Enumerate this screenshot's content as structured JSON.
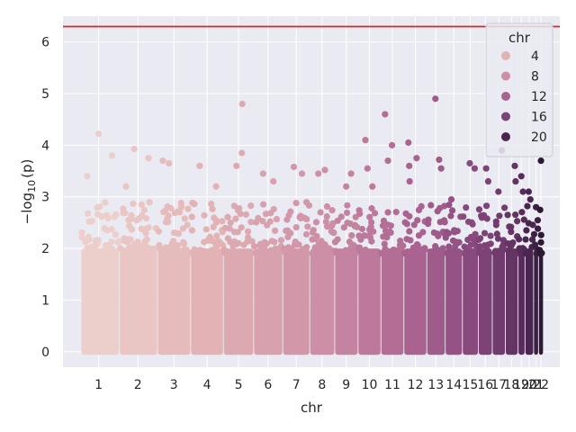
{
  "chart_data": {
    "type": "scatter",
    "title": "",
    "xlabel": "chr",
    "ylabel": "−log",
    "ylabel_sub": "10",
    "ylabel_tail": "(p)",
    "ylim": [
      -0.3,
      6.5
    ],
    "yticks": [
      0,
      1,
      2,
      3,
      4,
      5,
      6
    ],
    "grid": true,
    "background": "#eaeaf2",
    "threshold": {
      "y": 6.3,
      "color": "#d62728"
    },
    "chromosomes": [
      {
        "chr": "1",
        "span": [
          1,
          93
        ],
        "tick_at": 43,
        "max": 4.22,
        "peaks": [
          [
            43,
            4.22
          ],
          [
            76,
            3.8
          ],
          [
            15,
            3.4
          ]
        ]
      },
      {
        "chr": "2",
        "span": [
          95,
          186
        ],
        "tick_at": 139,
        "max": 3.93,
        "peaks": [
          [
            130,
            3.93
          ],
          [
            165,
            3.75
          ],
          [
            110,
            3.2
          ]
        ]
      },
      {
        "chr": "3",
        "span": [
          188,
          267
        ],
        "tick_at": 227,
        "max": 3.7,
        "peaks": [
          [
            200,
            3.7
          ],
          [
            215,
            3.65
          ]
        ]
      },
      {
        "chr": "4",
        "span": [
          269,
          347
        ],
        "tick_at": 308,
        "max": 3.6,
        "peaks": [
          [
            290,
            3.6
          ],
          [
            330,
            3.2
          ]
        ]
      },
      {
        "chr": "5",
        "span": [
          349,
          421
        ],
        "tick_at": 385,
        "max": 4.8,
        "peaks": [
          [
            394,
            4.8
          ],
          [
            393,
            3.85
          ],
          [
            380,
            3.6
          ]
        ]
      },
      {
        "chr": "6",
        "span": [
          423,
          492
        ],
        "tick_at": 457,
        "max": 3.45,
        "peaks": [
          [
            445,
            3.45
          ],
          [
            470,
            3.3
          ]
        ]
      },
      {
        "chr": "7",
        "span": [
          494,
          558
        ],
        "tick_at": 526,
        "max": 3.58,
        "peaks": [
          [
            520,
            3.58
          ],
          [
            540,
            3.45
          ]
        ]
      },
      {
        "chr": "8",
        "span": [
          560,
          619
        ],
        "tick_at": 589,
        "max": 3.52,
        "peaks": [
          [
            596,
            3.52
          ],
          [
            580,
            3.45
          ]
        ]
      },
      {
        "chr": "9",
        "span": [
          621,
          676
        ],
        "tick_at": 648,
        "max": 3.45,
        "peaks": [
          [
            660,
            3.45
          ],
          [
            648,
            3.2
          ]
        ]
      },
      {
        "chr": "10",
        "span": [
          678,
          732
        ],
        "tick_at": 705,
        "max": 4.1,
        "peaks": [
          [
            695,
            4.1
          ],
          [
            700,
            3.55
          ],
          [
            712,
            3.2
          ]
        ]
      },
      {
        "chr": "11",
        "span": [
          734,
          788
        ],
        "tick_at": 761,
        "max": 4.6,
        "peaks": [
          [
            743,
            4.6
          ],
          [
            760,
            4.0
          ],
          [
            750,
            3.7
          ]
        ]
      },
      {
        "chr": "12",
        "span": [
          790,
          844
        ],
        "tick_at": 817,
        "max": 4.05,
        "peaks": [
          [
            800,
            4.05
          ],
          [
            802,
            3.6
          ],
          [
            803,
            3.3
          ],
          [
            820,
            3.75
          ]
        ]
      },
      {
        "chr": "13",
        "span": [
          846,
          889
        ],
        "tick_at": 867,
        "max": 4.9,
        "peaks": [
          [
            866,
            4.9
          ],
          [
            875,
            3.72
          ],
          [
            880,
            3.55
          ]
        ]
      },
      {
        "chr": "14",
        "span": [
          891,
          931
        ],
        "tick_at": 911,
        "max": 2.95,
        "peaks": [
          [
            905,
            2.95
          ]
        ]
      },
      {
        "chr": "15",
        "span": [
          933,
          970
        ],
        "tick_at": 951,
        "max": 3.65,
        "peaks": [
          [
            950,
            3.65
          ],
          [
            962,
            3.55
          ]
        ]
      },
      {
        "chr": "16",
        "span": [
          972,
          1004
        ],
        "tick_at": 988,
        "max": 3.55,
        "peaks": [
          [
            990,
            3.55
          ],
          [
            995,
            3.3
          ]
        ]
      },
      {
        "chr": "17",
        "span": [
          1006,
          1036
        ],
        "tick_at": 1021,
        "max": 3.9,
        "peaks": [
          [
            1028,
            3.9
          ],
          [
            1020,
            3.1
          ]
        ]
      },
      {
        "chr": "18",
        "span": [
          1038,
          1067
        ],
        "tick_at": 1052,
        "max": 3.6,
        "peaks": [
          [
            1060,
            3.6
          ],
          [
            1062,
            3.3
          ]
        ]
      },
      {
        "chr": "19",
        "span": [
          1069,
          1084
        ],
        "tick_at": 1076,
        "max": 3.4,
        "peaks": [
          [
            1076,
            3.4
          ],
          [
            1080,
            3.1
          ]
        ]
      },
      {
        "chr": "20",
        "span": [
          1086,
          1105
        ],
        "tick_at": 1095,
        "max": 3.1,
        "peaks": [
          [
            1094,
            3.1
          ],
          [
            1098,
            2.95
          ]
        ]
      },
      {
        "chr": "21",
        "span": [
          1107,
          1117
        ],
        "tick_at": 1112,
        "max": 2.8,
        "peaks": [
          [
            1112,
            2.8
          ]
        ]
      },
      {
        "chr": "22",
        "span": [
          1119,
          1129
        ],
        "tick_at": 1124,
        "max": 3.7,
        "peaks": [
          [
            1124,
            3.7
          ]
        ]
      }
    ],
    "legend": {
      "title": "chr",
      "placement": "top-right",
      "entries": [
        {
          "label": "4",
          "color": "#e2b2b5"
        },
        {
          "label": "8",
          "color": "#cd8fa6"
        },
        {
          "label": "12",
          "color": "#aa6391"
        },
        {
          "label": "16",
          "color": "#7d4276"
        },
        {
          "label": "20",
          "color": "#4a2550"
        }
      ]
    }
  }
}
